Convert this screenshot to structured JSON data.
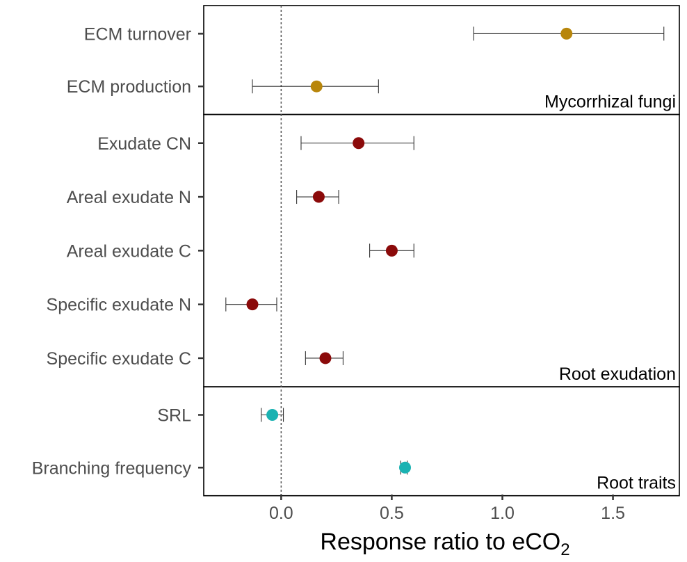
{
  "chart_data": {
    "type": "forest",
    "xlabel": "Response ratio to eCO",
    "xlabel_subscript": "2",
    "xlim": [
      -0.35,
      1.8
    ],
    "xticks": [
      0.0,
      0.5,
      1.0,
      1.5
    ],
    "xtick_labels": [
      "0.0",
      "0.5",
      "1.0",
      "1.5"
    ],
    "reference_line": 0,
    "panels": [
      {
        "name": "Mycorrhizal fungi",
        "color": "#B8860B",
        "rows": [
          {
            "label": "ECM turnover",
            "estimate": 1.29,
            "lower": 0.87,
            "upper": 1.73
          },
          {
            "label": "ECM production",
            "estimate": 0.16,
            "lower": -0.13,
            "upper": 0.44
          }
        ]
      },
      {
        "name": "Root exudation",
        "color": "#8B0A0A",
        "rows": [
          {
            "label": "Exudate CN",
            "estimate": 0.35,
            "lower": 0.09,
            "upper": 0.6
          },
          {
            "label": "Areal exudate N",
            "estimate": 0.17,
            "lower": 0.07,
            "upper": 0.26
          },
          {
            "label": "Areal exudate C",
            "estimate": 0.5,
            "lower": 0.4,
            "upper": 0.6
          },
          {
            "label": "Specific exudate N",
            "estimate": -0.13,
            "lower": -0.25,
            "upper": -0.02
          },
          {
            "label": "Specific exudate C",
            "estimate": 0.2,
            "lower": 0.11,
            "upper": 0.28
          }
        ]
      },
      {
        "name": "Root traits",
        "color": "#1AB2B2",
        "rows": [
          {
            "label": "SRL",
            "estimate": -0.04,
            "lower": -0.09,
            "upper": 0.01
          },
          {
            "label": "Branching frequency",
            "estimate": 0.56,
            "lower": 0.54,
            "upper": 0.57
          }
        ]
      }
    ]
  }
}
